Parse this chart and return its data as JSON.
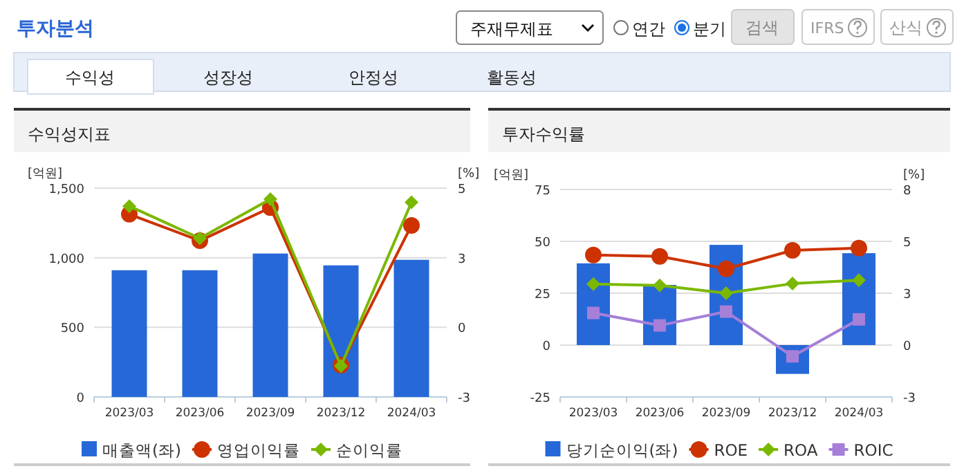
{
  "chart_data": [
    {
      "type": "other",
      "title": "투자분석",
      "annotations": [
        "주재무제표",
        "연간",
        "분기",
        "검색",
        "IFRS",
        "산식",
        "수익성",
        "성장성",
        "안정성",
        "활동성"
      ]
    },
    {
      "type": "bar",
      "title": "수익성지표",
      "ylabel": "[억원]",
      "y2label": "[%]",
      "categories": [
        "2023/03",
        "2023/06",
        "2023/09",
        "2023/12",
        "2024/03"
      ],
      "series": [
        {
          "name": "매출액(좌)",
          "type": "bar",
          "color": "#2768d8",
          "values": [
            910,
            910,
            1030,
            945,
            985
          ]
        },
        {
          "name": "영업이익률",
          "type": "line",
          "axis": "y2",
          "marker": "circle",
          "color": "#cc3300",
          "values": [
            4.06,
            3.11,
            4.3,
            -1.36,
            3.66
          ]
        },
        {
          "name": "순이익률",
          "type": "line",
          "axis": "y2",
          "marker": "diamond",
          "color": "#7ab800",
          "values": [
            4.35,
            3.2,
            4.6,
            -1.39,
            4.49
          ]
        }
      ],
      "ylim": [
        0,
        1500
      ],
      "yticks": [
        0,
        500,
        {
          "value": 1000,
          "label": "1,000"
        },
        {
          "value": 1500,
          "label": "1,500"
        }
      ],
      "y2lim": [
        -2.5,
        5
      ],
      "y2ticks": [
        {
          "value": -2.5,
          "label": "-3"
        },
        0,
        {
          "value": 2.5,
          "label": "3"
        },
        5
      ],
      "grid": "y",
      "legend": "bottom"
    },
    {
      "type": "bar",
      "title": "투자수익률",
      "ylabel": "[억원]",
      "y2label": "[%]",
      "categories": [
        "2023/03",
        "2023/06",
        "2023/09",
        "2023/12",
        "2024/03"
      ],
      "series": [
        {
          "name": "당기순이익(좌)",
          "type": "bar",
          "color": "#2768d8",
          "values": [
            39.4,
            29,
            48.3,
            -13.9,
            44.3
          ]
        },
        {
          "name": "ROE",
          "type": "line",
          "axis": "y2",
          "marker": "circle",
          "color": "#cc3300",
          "values": [
            4.63,
            4.56,
            3.92,
            4.87,
            4.99
          ]
        },
        {
          "name": "ROA",
          "type": "line",
          "axis": "y2",
          "marker": "diamond",
          "color": "#7ab800",
          "values": [
            3.14,
            3.07,
            2.67,
            3.16,
            3.33
          ]
        },
        {
          "name": "ROIC",
          "type": "line",
          "axis": "y2",
          "marker": "square",
          "color": "#a57fd8",
          "values": [
            1.65,
            1.01,
            1.72,
            -0.58,
            1.32
          ]
        }
      ],
      "ylim": [
        -25,
        75
      ],
      "yticks": [
        -25,
        0,
        25,
        50,
        75
      ],
      "y2lim": [
        -2.667,
        8
      ],
      "y2ticks": [
        {
          "value": -2.667,
          "label": "-3"
        },
        0,
        {
          "value": 2.667,
          "label": "3"
        },
        {
          "value": 5.333,
          "label": "5"
        },
        8
      ],
      "grid": "y",
      "legend": "bottom"
    }
  ]
}
